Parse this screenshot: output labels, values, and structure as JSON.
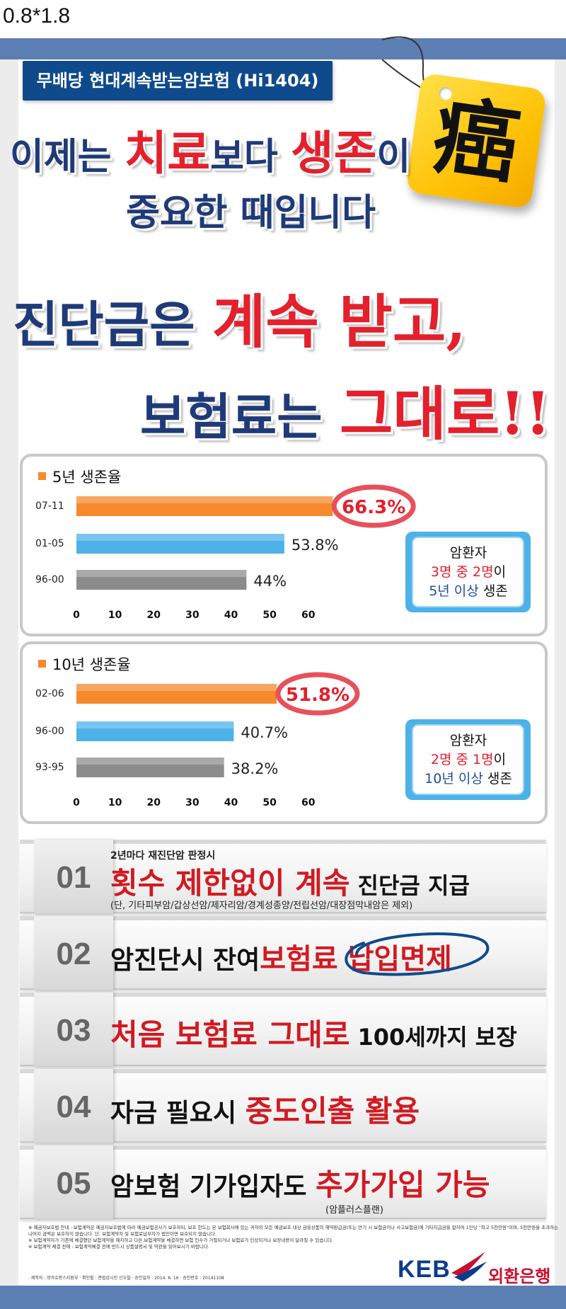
{
  "corner_label": "0.8*1.8",
  "product_name": "무배당 현대계속받는암보험 (Hi1404)",
  "cancer_char": "癌",
  "headline": {
    "l1_a": "이제는 ",
    "l1_b": "치료",
    "l1_c": "보다 ",
    "l1_d": "생존",
    "l1_e": "이",
    "l2": "중요한 때입니다",
    "l3_a": "진단금은 ",
    "l3_b": "계속 받고,",
    "l4_a": "보험료는 ",
    "l4_b": "그대로!!"
  },
  "colors": {
    "navy": "#1f3a78",
    "red": "#e3202c",
    "orange": "#f5892b",
    "blue": "#4cb2e8",
    "gray": "#8c8c8c",
    "accent_square": "#f5892b"
  },
  "chart_data": [
    {
      "type": "bar",
      "title": "5년 생존율",
      "categories": [
        "07-11",
        "01-05",
        "96-00"
      ],
      "values": [
        66.3,
        53.8,
        44
      ],
      "value_labels": [
        "66.3%",
        "53.8%",
        "44%"
      ],
      "xlim": [
        0,
        67
      ],
      "xticks": [
        "0",
        "10",
        "20",
        "30",
        "40",
        "50",
        "60"
      ],
      "xtick_values": [
        0,
        10,
        20,
        30,
        40,
        50,
        60
      ],
      "bar_colors": [
        "#f5892b",
        "#4cb2e8",
        "#8c8c8c"
      ],
      "callout": {
        "l1": "암환자",
        "l2_red": "3명 중 2명",
        "l2_rest": "이",
        "l3_blue": "5년 이상",
        "l3_rest": " 생존"
      }
    },
    {
      "type": "bar",
      "title": "10년 생존율",
      "categories": [
        "02-06",
        "96-00",
        "93-95"
      ],
      "values": [
        51.8,
        40.7,
        38.2
      ],
      "value_labels": [
        "51.8%",
        "40.7%",
        "38.2%"
      ],
      "xlim": [
        0,
        67
      ],
      "xticks": [
        "0",
        "10",
        "20",
        "30",
        "40",
        "50",
        "60"
      ],
      "xtick_values": [
        0,
        10,
        20,
        30,
        40,
        50,
        60
      ],
      "bar_colors": [
        "#f5892b",
        "#4cb2e8",
        "#8c8c8c"
      ],
      "callout": {
        "l1": "암환자",
        "l2_red": "2명 중 1명",
        "l2_rest": "이",
        "l3_blue": "10년 이상",
        "l3_rest": " 생존"
      }
    }
  ],
  "features": [
    {
      "num": "01",
      "pre": "2년마다 재진단암 판정시",
      "red": "횟수 제한없이 계속",
      "black": " 진단금 지급",
      "note": "(단, 기타피부암/갑상선암/제자리암/경계성종양/전립선암/대장점막내암은 제외)"
    },
    {
      "num": "02",
      "black": "암진단시 잔여",
      "red": "보험료 납입면제"
    },
    {
      "num": "03",
      "red": "처음 보험료 그대로",
      "black": " 100세까지 보장"
    },
    {
      "num": "04",
      "black": "자금 필요시 ",
      "red": "중도인출 활용"
    },
    {
      "num": "05",
      "black": "암보험 기가입자도 ",
      "red": "추가가입 가능",
      "note": "(암플러스플랜)"
    }
  ],
  "footnotes": {
    "n1": "※ 예금자보호법 안내 : 보험계약은 예금자보호법에 따라 예금보험공사가 보호하되, 보호 한도는 본 보험회사에 있는 귀하의 모든 예금보호 대상 금융상품의 해약환급금(또는 만기 시 보험금이나 사고보험금)에 기타지급금을 합하여 1인당 \"최고 5천만원\"이며, 5천만원을 초과하는",
    "n2": "  나머지 금액은 보호하지 않습니다. 단, 보험계약자 및 보험료납부자가 법인이면 보호되지 않습니다.",
    "n3": "※ 보험계약자가 기존에 체결했던 보험계약을 해지하고 다른 보험계약을 체결하면 보험 인수가 거절되거나 보험료가 인상되거나 보장내용이 달라질 수 있습니다.",
    "n4": "※ 보험계약 체결 전에 : 보험계약체결 전에 반드시 상품설명서 및 약관을 읽어보시기 바랍니다.",
    "approval": "· 제작자 : 방카슈랑스지원부   · 확인필 : 준법감시인 신우철   · 승인일자 : 2014. 6. 16   · 승인번호 : 20141108"
  },
  "logo": {
    "keb": "KEB",
    "bank_name": "외환은행"
  }
}
